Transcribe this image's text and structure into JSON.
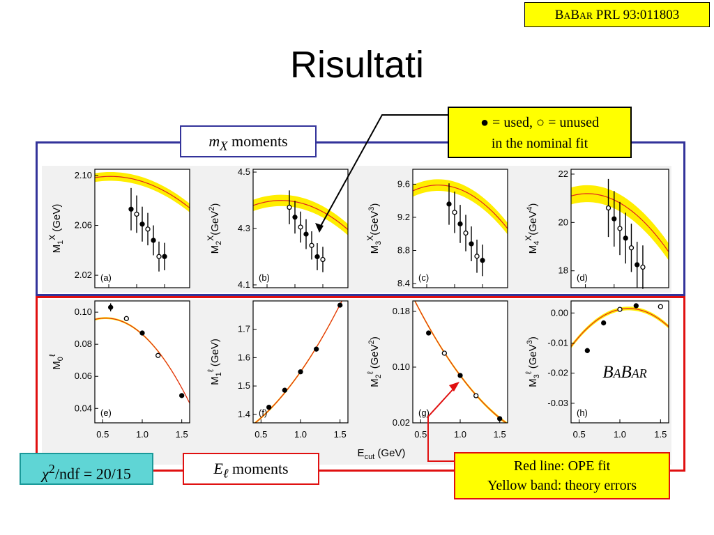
{
  "slide": {
    "title": "Risultati",
    "reference": {
      "pre": "B",
      "mid": "A",
      "b2": "B",
      "ar": "AR",
      "rest": " PRL 93:011803"
    },
    "mx_label": {
      "sym": "m",
      "sub": "X",
      "text": " moments"
    },
    "el_label": {
      "sym": "E",
      "sub": "ℓ",
      "text": " moments"
    },
    "legend_line1": "● = used, ○ = unused",
    "legend_line2": "in the nominal fit",
    "redline_line1": "Red line: OPE fit",
    "redline_line2": "Yellow band: theory errors",
    "chi2": {
      "chi": "χ",
      "sup": "2",
      "rest": "/ndf = 20/15"
    },
    "babar_logo": "BABAR",
    "xaxis_label": "E",
    "xaxis_sub": "cut",
    "xaxis_unit": " (GeV)",
    "colors": {
      "fit_line": "#e02020",
      "band": "#ffee00",
      "frame_top": "#33339a",
      "frame_bottom": "#e01010",
      "chi_box": "#5fd5d5"
    }
  },
  "chart_data": [
    {
      "type": "scatter",
      "panel": "(a)",
      "ylabel": "M1X (GeV)",
      "ytick_labels": [
        "2.02",
        "2.06",
        "2.10"
      ],
      "ylim": [
        2.01,
        2.105
      ],
      "xlim": [
        0.25,
        1.95
      ],
      "band_width": 0.0035,
      "fit": [
        2.0965,
        -0.0118,
        -0.0125
      ],
      "points": [
        {
          "x": 0.9,
          "y": 2.073,
          "err": 0.017,
          "used": true
        },
        {
          "x": 1.0,
          "y": 2.069,
          "err": 0.015,
          "used": false
        },
        {
          "x": 1.1,
          "y": 2.061,
          "err": 0.014,
          "used": true
        },
        {
          "x": 1.2,
          "y": 2.057,
          "err": 0.013,
          "used": false
        },
        {
          "x": 1.3,
          "y": 2.048,
          "err": 0.012,
          "used": true
        },
        {
          "x": 1.4,
          "y": 2.035,
          "err": 0.012,
          "used": false
        },
        {
          "x": 1.5,
          "y": 2.035,
          "err": 0.011,
          "used": true
        }
      ]
    },
    {
      "type": "scatter",
      "panel": "(b)",
      "ylabel": "M2X (GeV2)",
      "ytick_labels": [
        "4.1",
        "4.3",
        "4.5"
      ],
      "ylim": [
        4.09,
        4.51
      ],
      "xlim": [
        0.25,
        1.95
      ],
      "band_width": 0.02,
      "fit": [
        4.395,
        -0.036,
        -0.072
      ],
      "points": [
        {
          "x": 0.9,
          "y": 4.375,
          "err": 0.06,
          "used": false
        },
        {
          "x": 1.0,
          "y": 4.34,
          "err": 0.058,
          "used": true
        },
        {
          "x": 1.1,
          "y": 4.305,
          "err": 0.055,
          "used": false
        },
        {
          "x": 1.2,
          "y": 4.28,
          "err": 0.053,
          "used": true
        },
        {
          "x": 1.3,
          "y": 4.24,
          "err": 0.05,
          "used": false
        },
        {
          "x": 1.4,
          "y": 4.2,
          "err": 0.048,
          "used": true
        },
        {
          "x": 1.5,
          "y": 4.19,
          "err": 0.045,
          "used": false
        }
      ]
    },
    {
      "type": "scatter",
      "panel": "(c)",
      "ylabel": "M3X (GeV3)",
      "ytick_labels": [
        "8.4",
        "8.8",
        "9.2",
        "9.6"
      ],
      "ylim": [
        8.35,
        9.78
      ],
      "xlim": [
        0.25,
        1.95
      ],
      "band_width": 0.07,
      "fit": [
        9.56,
        -0.2,
        -0.34
      ],
      "points": [
        {
          "x": 0.9,
          "y": 9.36,
          "err": 0.25,
          "used": true
        },
        {
          "x": 1.0,
          "y": 9.26,
          "err": 0.25,
          "used": false
        },
        {
          "x": 1.1,
          "y": 9.12,
          "err": 0.23,
          "used": true
        },
        {
          "x": 1.2,
          "y": 9.01,
          "err": 0.22,
          "used": false
        },
        {
          "x": 1.3,
          "y": 8.88,
          "err": 0.21,
          "used": true
        },
        {
          "x": 1.4,
          "y": 8.73,
          "err": 0.2,
          "used": false
        },
        {
          "x": 1.5,
          "y": 8.68,
          "err": 0.19,
          "used": true
        }
      ]
    },
    {
      "type": "scatter",
      "panel": "(d)",
      "ylabel": "M4X (GeV4)",
      "ytick_labels": [
        "18",
        "20",
        "22"
      ],
      "ylim": [
        17.3,
        22.2
      ],
      "xlim": [
        0.25,
        1.95
      ],
      "band_width": 0.35,
      "fit": [
        20.93,
        -1.12,
        -1.2
      ],
      "points": [
        {
          "x": 0.9,
          "y": 20.6,
          "err": 1.2,
          "used": false
        },
        {
          "x": 1.0,
          "y": 20.15,
          "err": 1.15,
          "used": true
        },
        {
          "x": 1.1,
          "y": 19.75,
          "err": 1.1,
          "used": false
        },
        {
          "x": 1.2,
          "y": 19.35,
          "err": 1.05,
          "used": true
        },
        {
          "x": 1.3,
          "y": 18.95,
          "err": 1.0,
          "used": false
        },
        {
          "x": 1.4,
          "y": 18.25,
          "err": 0.95,
          "used": true
        },
        {
          "x": 1.5,
          "y": 18.15,
          "err": 0.9,
          "used": false
        }
      ]
    },
    {
      "type": "scatter",
      "panel": "(e)",
      "ylabel": "M0ℓ",
      "ytick_labels": [
        "0.04",
        "0.06",
        "0.08",
        "0.10"
      ],
      "ylim": [
        0.031,
        0.107
      ],
      "xlim": [
        0.4,
        1.6
      ],
      "xtick_labels": [
        "0.5",
        "1.0",
        "1.5"
      ],
      "band_width": 0.0006,
      "fit": [
        0.0862,
        -0.0435,
        -0.0468
      ],
      "points": [
        {
          "x": 0.6,
          "y": 0.103,
          "err": 0.0025,
          "used": true
        },
        {
          "x": 0.8,
          "y": 0.096,
          "err": 0.0012,
          "used": false
        },
        {
          "x": 1.0,
          "y": 0.087,
          "err": 0.001,
          "used": true
        },
        {
          "x": 1.2,
          "y": 0.073,
          "err": 0.001,
          "used": false
        },
        {
          "x": 1.5,
          "y": 0.048,
          "err": 0.0008,
          "used": true
        }
      ]
    },
    {
      "type": "scatter",
      "panel": "(f)",
      "ylabel": "M1ℓ (GeV)",
      "ytick_labels": [
        "1.4",
        "1.5",
        "1.6",
        "1.7"
      ],
      "ylim": [
        1.37,
        1.8
      ],
      "xlim": [
        0.4,
        1.6
      ],
      "xtick_labels": [
        "0.5",
        "1.0",
        "1.5"
      ],
      "band_width": 0.004,
      "fit": [
        1.55,
        0.4,
        0.15
      ],
      "points": [
        {
          "x": 0.6,
          "y": 1.425,
          "err": 0.004,
          "used": true
        },
        {
          "x": 0.8,
          "y": 1.485,
          "err": 0.004,
          "used": true
        },
        {
          "x": 1.0,
          "y": 1.55,
          "err": 0.004,
          "used": true
        },
        {
          "x": 1.2,
          "y": 1.63,
          "err": 0.004,
          "used": true
        },
        {
          "x": 1.5,
          "y": 1.785,
          "err": 0.004,
          "used": true
        }
      ]
    },
    {
      "type": "scatter",
      "panel": "(g)",
      "ylabel": "M2ℓ (GeV2)",
      "ytick_labels": [
        "0.02",
        "0.10",
        "0.18"
      ],
      "ylim": [
        0.02,
        0.195
      ],
      "xlim": [
        0.4,
        1.6
      ],
      "xtick_labels": [
        "0.5",
        "1.0",
        "1.5"
      ],
      "band_width": 0.002,
      "fit": [
        0.088,
        -0.152,
        0.06
      ],
      "points": [
        {
          "x": 0.6,
          "y": 0.149,
          "err": 0.003,
          "used": true
        },
        {
          "x": 0.8,
          "y": 0.12,
          "err": 0.003,
          "used": false
        },
        {
          "x": 1.0,
          "y": 0.088,
          "err": 0.003,
          "used": true
        },
        {
          "x": 1.2,
          "y": 0.059,
          "err": 0.003,
          "used": false
        },
        {
          "x": 1.5,
          "y": 0.026,
          "err": 0.003,
          "used": true
        }
      ]
    },
    {
      "type": "scatter",
      "panel": "(h)",
      "ylabel": "M3ℓ (GeV3)",
      "ytick_labels": [
        "0.00",
        "-0.01",
        "-0.02",
        "-0.03"
      ],
      "ylim": [
        -0.0365,
        0.004
      ],
      "xlim": [
        0.4,
        1.6
      ],
      "xtick_labels": [
        "0.5",
        "1.0",
        "1.5"
      ],
      "band_width": 0.0006,
      "fit": [
        0.0012,
        0.0055,
        -0.0252
      ],
      "points": [
        {
          "x": 0.6,
          "y": -0.0125,
          "err": 0.0008,
          "used": true
        },
        {
          "x": 0.8,
          "y": -0.0033,
          "err": 0.0005,
          "used": true
        },
        {
          "x": 1.0,
          "y": 0.0012,
          "err": 0.0004,
          "used": false
        },
        {
          "x": 1.2,
          "y": 0.0024,
          "err": 0.0004,
          "used": true
        },
        {
          "x": 1.5,
          "y": 0.0021,
          "err": 0.0004,
          "used": false
        }
      ]
    }
  ]
}
